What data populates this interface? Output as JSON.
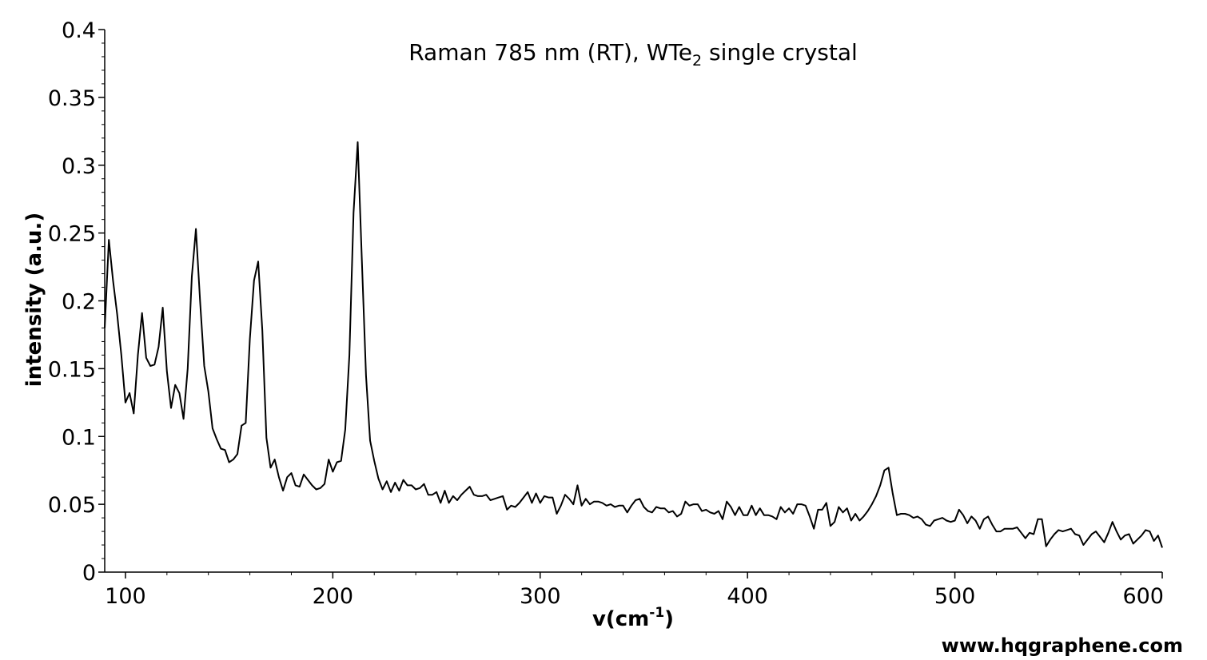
{
  "chart_data": {
    "type": "line",
    "title": {
      "prefix": "Raman 785 nm (RT), WTe",
      "subscript": "2",
      "suffix": " single crystal"
    },
    "xlabel": {
      "prefix": "v(cm",
      "superscript": "-1",
      "suffix": ")"
    },
    "ylabel": "intensity (a.u.)",
    "xlim": [
      90,
      600
    ],
    "ylim": [
      0,
      0.4
    ],
    "xticks": [
      100,
      200,
      300,
      400,
      500,
      600
    ],
    "xtick_labels": [
      "100",
      "200",
      "300",
      "400",
      "500",
      "600"
    ],
    "yticks": [
      0,
      0.05,
      0.1,
      0.15,
      0.2,
      0.25,
      0.3,
      0.35,
      0.4
    ],
    "ytick_labels": [
      "0",
      "0.05",
      "0.1",
      "0.15",
      "0.2",
      "0.25",
      "0.3",
      "0.35",
      "0.4"
    ],
    "grid": false,
    "legend": "none",
    "line_color": "#000000",
    "series": [
      {
        "x": [
          90,
          92,
          94,
          96,
          98,
          100,
          102,
          104,
          106,
          108,
          110,
          112,
          114,
          116,
          118,
          120,
          122,
          124,
          126,
          128,
          130,
          132,
          134,
          136,
          138,
          140,
          142,
          144,
          146,
          148,
          150,
          152,
          154,
          156,
          158,
          160,
          162,
          164,
          166,
          168,
          170,
          172,
          174,
          176,
          178,
          180,
          182,
          184,
          186,
          188,
          190,
          192,
          194,
          196,
          198,
          200,
          202,
          204,
          206,
          208,
          210,
          212,
          214,
          216,
          218,
          220,
          222,
          224,
          226,
          228,
          230,
          232,
          234,
          236,
          238,
          240,
          242,
          244,
          246,
          248,
          250,
          252,
          254,
          256,
          258,
          260,
          262,
          264,
          266,
          268,
          270,
          272,
          274,
          276,
          278,
          280,
          282,
          284,
          286,
          288,
          290,
          292,
          294,
          296,
          298,
          300,
          302,
          304,
          306,
          308,
          310,
          312,
          314,
          316,
          318,
          320,
          322,
          324,
          326,
          328,
          330,
          332,
          334,
          336,
          338,
          340,
          342,
          344,
          346,
          348,
          350,
          352,
          354,
          356,
          358,
          360,
          362,
          364,
          366,
          368,
          370,
          372,
          374,
          376,
          378,
          380,
          382,
          384,
          386,
          388,
          390,
          392,
          394,
          396,
          398,
          400,
          402,
          404,
          406,
          408,
          410,
          412,
          414,
          416,
          418,
          420,
          422,
          424,
          426,
          428,
          430,
          432,
          434,
          436,
          438,
          440,
          442,
          444,
          446,
          448,
          450,
          452,
          454,
          456,
          458,
          460,
          462,
          464,
          466,
          468,
          470,
          472,
          474,
          476,
          478,
          480,
          482,
          484,
          486,
          488,
          490,
          492,
          494,
          496,
          498,
          500,
          502,
          504,
          506,
          508,
          510,
          512,
          514,
          516,
          518,
          520,
          522,
          524,
          526,
          528,
          530,
          532,
          534,
          536,
          538,
          540,
          542,
          544,
          546,
          548,
          550,
          552,
          554,
          556,
          558,
          560,
          562,
          564,
          566,
          568,
          570,
          572,
          574,
          576,
          578,
          580,
          582,
          584,
          586,
          588,
          590,
          592,
          594,
          596,
          598,
          600
        ],
        "y": [
          0.18,
          0.245,
          0.215,
          0.19,
          0.16,
          0.125,
          0.132,
          0.117,
          0.16,
          0.191,
          0.158,
          0.152,
          0.153,
          0.166,
          0.195,
          0.148,
          0.121,
          0.138,
          0.132,
          0.113,
          0.15,
          0.218,
          0.253,
          0.2,
          0.152,
          0.133,
          0.106,
          0.098,
          0.091,
          0.09,
          0.081,
          0.083,
          0.087,
          0.108,
          0.11,
          0.172,
          0.215,
          0.229,
          0.178,
          0.099,
          0.077,
          0.083,
          0.07,
          0.06,
          0.07,
          0.073,
          0.064,
          0.063,
          0.072,
          0.068,
          0.064,
          0.061,
          0.062,
          0.065,
          0.083,
          0.074,
          0.081,
          0.082,
          0.105,
          0.16,
          0.265,
          0.317,
          0.23,
          0.145,
          0.097,
          0.082,
          0.069,
          0.061,
          0.067,
          0.059,
          0.066,
          0.06,
          0.068,
          0.064,
          0.064,
          0.061,
          0.062,
          0.065,
          0.057,
          0.057,
          0.059,
          0.051,
          0.06,
          0.051,
          0.056,
          0.053,
          0.057,
          0.06,
          0.063,
          0.057,
          0.056,
          0.056,
          0.057,
          0.053,
          0.054,
          0.055,
          0.056,
          0.046,
          0.049,
          0.048,
          0.051,
          0.055,
          0.059,
          0.051,
          0.058,
          0.051,
          0.056,
          0.055,
          0.055,
          0.043,
          0.049,
          0.057,
          0.054,
          0.05,
          0.064,
          0.049,
          0.054,
          0.05,
          0.052,
          0.052,
          0.051,
          0.049,
          0.05,
          0.048,
          0.049,
          0.049,
          0.044,
          0.049,
          0.053,
          0.054,
          0.048,
          0.045,
          0.044,
          0.048,
          0.047,
          0.047,
          0.044,
          0.045,
          0.041,
          0.043,
          0.052,
          0.049,
          0.05,
          0.05,
          0.045,
          0.046,
          0.044,
          0.043,
          0.045,
          0.039,
          0.052,
          0.048,
          0.042,
          0.048,
          0.042,
          0.042,
          0.049,
          0.042,
          0.047,
          0.042,
          0.042,
          0.041,
          0.039,
          0.048,
          0.044,
          0.047,
          0.043,
          0.05,
          0.05,
          0.049,
          0.041,
          0.032,
          0.046,
          0.046,
          0.051,
          0.034,
          0.037,
          0.048,
          0.044,
          0.047,
          0.038,
          0.043,
          0.038,
          0.041,
          0.045,
          0.05,
          0.056,
          0.064,
          0.075,
          0.077,
          0.058,
          0.042,
          0.043,
          0.043,
          0.042,
          0.04,
          0.041,
          0.039,
          0.035,
          0.034,
          0.038,
          0.039,
          0.04,
          0.038,
          0.037,
          0.038,
          0.046,
          0.042,
          0.036,
          0.041,
          0.038,
          0.032,
          0.039,
          0.041,
          0.035,
          0.03,
          0.03,
          0.032,
          0.032,
          0.032,
          0.033,
          0.029,
          0.025,
          0.029,
          0.028,
          0.039,
          0.039,
          0.019,
          0.024,
          0.028,
          0.031,
          0.03,
          0.031,
          0.032,
          0.028,
          0.027,
          0.02,
          0.024,
          0.028,
          0.03,
          0.026,
          0.022,
          0.029,
          0.037,
          0.03,
          0.024,
          0.027,
          0.028,
          0.021,
          0.024,
          0.027,
          0.031,
          0.03,
          0.023,
          0.027,
          0.018
        ]
      }
    ]
  },
  "watermark": "www.hqgraphene.com"
}
